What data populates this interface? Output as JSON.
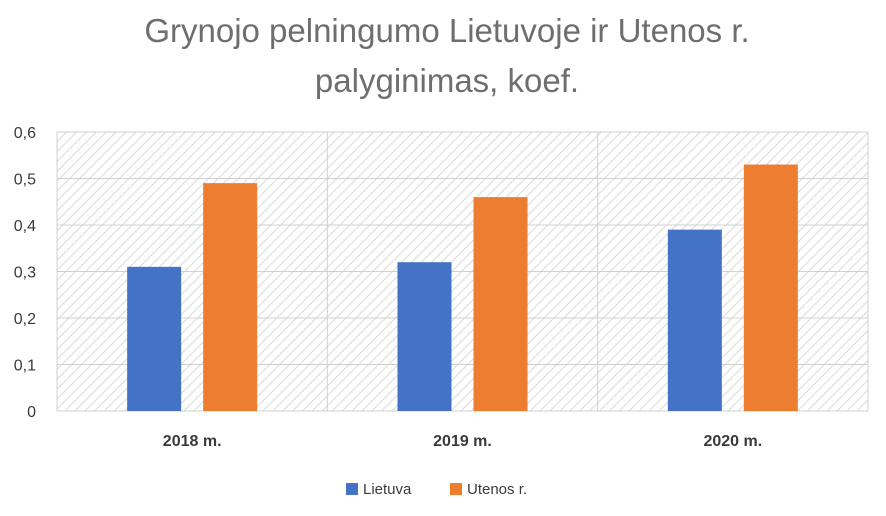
{
  "chart_data": {
    "type": "bar",
    "title": "Grynojo pelningumo Lietuvoje ir Utenos r. palyginimas, koef.",
    "title_lines": [
      "Grynojo pelningumo Lietuvoje ir Utenos r.",
      "palyginimas, koef."
    ],
    "categories": [
      "2018 m.",
      "2019 m.",
      "2020 m."
    ],
    "series": [
      {
        "name": "Lietuva",
        "color": "#4472c4",
        "values": [
          0.31,
          0.32,
          0.39
        ]
      },
      {
        "name": "Utenos r.",
        "color": "#ed7d31",
        "values": [
          0.49,
          0.46,
          0.53
        ]
      }
    ],
    "ylim": [
      0,
      0.6
    ],
    "yticks": [
      "0",
      "0,1",
      "0,2",
      "0,3",
      "0,4",
      "0,5",
      "0,6"
    ],
    "grid": true,
    "plot_background": "hatched",
    "legend_position": "bottom"
  }
}
